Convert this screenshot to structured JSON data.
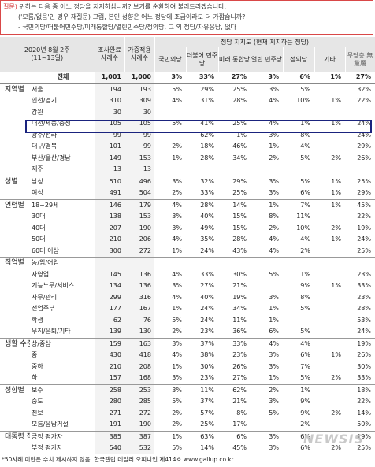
{
  "question": {
    "label": "질문)",
    "line1": "귀하는 다음 중 어느 정당을 지지하십니까? 보기를 순환하여 불러드리겠습니다.",
    "line2": "('모름/없음'인 경우 재질문) 그럼, 본인 성향은 어느 정당에 조금이라도 더 가깝습니까?",
    "line3": "- 국민의당/더불어민주당/미래통합당/열린민주당/정의당, 그 외 정당/자유응답, 없다"
  },
  "header": {
    "period": "2020년 8월 2주",
    "dates": "(11~13일)",
    "col_sample": "조사완료 사례수",
    "col_weighted": "가중적용 사례수",
    "party_group": "정당 지지도 (현재 지지하는 정당)",
    "parties": [
      "국민의당",
      "더불어 민주당",
      "미래 통합당",
      "열린 민주당",
      "정의당",
      "기타",
      "무당층 無黨層"
    ]
  },
  "rows": [
    {
      "group": "",
      "label": "전체",
      "n": "1,001",
      "w": "1,000",
      "v": [
        "3%",
        "33%",
        "27%",
        "3%",
        "6%",
        "1%",
        "27%"
      ]
    },
    {
      "group": "지역별",
      "label": "서울",
      "n": "194",
      "w": "193",
      "v": [
        "5%",
        "29%",
        "25%",
        "3%",
        "5%",
        "",
        "32%"
      ]
    },
    {
      "group": "",
      "label": "인천/경기",
      "n": "310",
      "w": "309",
      "v": [
        "4%",
        "31%",
        "28%",
        "4%",
        "10%",
        "1%",
        "22%"
      ]
    },
    {
      "group": "",
      "label": "강원",
      "n": "30",
      "w": "30",
      "v": [
        "",
        "",
        "",
        "",
        "",
        "",
        ""
      ]
    },
    {
      "group": "",
      "label": "대전/세종/충청",
      "n": "105",
      "w": "105",
      "v": [
        "5%",
        "41%",
        "25%",
        "4%",
        "1%",
        "1%",
        "24%"
      ]
    },
    {
      "group": "",
      "label": "광주/전라",
      "n": "99",
      "w": "99",
      "v": [
        "",
        "62%",
        "1%",
        "3%",
        "8%",
        "",
        "24%"
      ]
    },
    {
      "group": "",
      "label": "대구/경북",
      "n": "101",
      "w": "99",
      "v": [
        "2%",
        "18%",
        "46%",
        "1%",
        "4%",
        "",
        "29%"
      ]
    },
    {
      "group": "",
      "label": "부산/울산/경남",
      "n": "149",
      "w": "153",
      "v": [
        "1%",
        "28%",
        "34%",
        "2%",
        "5%",
        "2%",
        "26%"
      ]
    },
    {
      "group": "",
      "label": "제주",
      "n": "13",
      "w": "13",
      "v": [
        "",
        "",
        "",
        "",
        "",
        "",
        ""
      ]
    },
    {
      "group": "성별",
      "label": "남성",
      "n": "510",
      "w": "496",
      "v": [
        "3%",
        "32%",
        "29%",
        "3%",
        "5%",
        "1%",
        "25%"
      ]
    },
    {
      "group": "",
      "label": "여성",
      "n": "491",
      "n2": "",
      "w": "504",
      "v": [
        "2%",
        "33%",
        "25%",
        "3%",
        "6%",
        "1%",
        "29%"
      ]
    },
    {
      "group": "연령별",
      "label": "18~29세",
      "n": "146",
      "w": "179",
      "v": [
        "4%",
        "28%",
        "14%",
        "1%",
        "7%",
        "1%",
        "45%"
      ]
    },
    {
      "group": "",
      "label": "30대",
      "n": "138",
      "w": "153",
      "v": [
        "3%",
        "40%",
        "15%",
        "8%",
        "11%",
        "",
        "22%"
      ]
    },
    {
      "group": "",
      "label": "40대",
      "n": "207",
      "w": "190",
      "v": [
        "3%",
        "49%",
        "15%",
        "2%",
        "10%",
        "2%",
        "19%"
      ]
    },
    {
      "group": "",
      "label": "50대",
      "n": "210",
      "w": "206",
      "v": [
        "4%",
        "35%",
        "28%",
        "4%",
        "4%",
        "1%",
        "24%"
      ]
    },
    {
      "group": "",
      "label": "60대 이상",
      "n": "300",
      "w": "272",
      "v": [
        "1%",
        "24%",
        "43%",
        "4%",
        "2%",
        "",
        "25%"
      ]
    },
    {
      "group": "직업별",
      "label": "농/임/어업",
      "n": "",
      "w": "",
      "v": [
        "",
        "",
        "",
        "",
        "",
        "",
        ""
      ]
    },
    {
      "group": "",
      "label": "자영업",
      "n": "145",
      "w": "136",
      "v": [
        "4%",
        "33%",
        "30%",
        "5%",
        "1%",
        "",
        "23%"
      ]
    },
    {
      "group": "",
      "label": "기능노무/서비스",
      "n": "134",
      "w": "136",
      "v": [
        "3%",
        "27%",
        "21%",
        "",
        "9%",
        "1%",
        "33%"
      ]
    },
    {
      "group": "",
      "label": "사무/관리",
      "n": "299",
      "w": "316",
      "v": [
        "4%",
        "40%",
        "19%",
        "3%",
        "8%",
        "",
        "23%"
      ]
    },
    {
      "group": "",
      "label": "전업주부",
      "n": "177",
      "w": "167",
      "v": [
        "1%",
        "24%",
        "34%",
        "1%",
        "5%",
        "",
        "28%"
      ]
    },
    {
      "group": "",
      "label": "학생",
      "n": "62",
      "w": "76",
      "v": [
        "5%",
        "24%",
        "11%",
        "1%",
        "",
        "",
        "53%"
      ]
    },
    {
      "group": "",
      "label": "무직/은퇴/기타",
      "n": "139",
      "w": "130",
      "v": [
        "2%",
        "23%",
        "36%",
        "6%",
        "5%",
        "",
        "24%"
      ]
    },
    {
      "group": "생활 수준별",
      "label": "상/중상",
      "n": "159",
      "w": "163",
      "v": [
        "3%",
        "37%",
        "33%",
        "4%",
        "4%",
        "",
        "19%"
      ]
    },
    {
      "group": "",
      "label": "중",
      "n": "430",
      "w": "418",
      "v": [
        "4%",
        "38%",
        "23%",
        "3%",
        "6%",
        "1%",
        "26%"
      ]
    },
    {
      "group": "",
      "label": "중하",
      "n": "210",
      "w": "208",
      "v": [
        "1%",
        "30%",
        "26%",
        "3%",
        "7%",
        "",
        "30%"
      ]
    },
    {
      "group": "",
      "label": "하",
      "n": "157",
      "w": "168",
      "v": [
        "3%",
        "23%",
        "27%",
        "1%",
        "5%",
        "2%",
        "33%"
      ]
    },
    {
      "group": "성향별",
      "label": "보수",
      "n": "258",
      "w": "253",
      "v": [
        "3%",
        "11%",
        "62%",
        "2%",
        "1%",
        "",
        "18%"
      ]
    },
    {
      "group": "",
      "label": "중도",
      "n": "280",
      "w": "285",
      "v": [
        "5%",
        "37%",
        "21%",
        "3%",
        "9%",
        "",
        "22%"
      ]
    },
    {
      "group": "",
      "label": "진보",
      "n": "271",
      "w": "272",
      "v": [
        "2%",
        "57%",
        "8%",
        "5%",
        "9%",
        "2%",
        "14%"
      ]
    },
    {
      "group": "",
      "label": "모름/응답거절",
      "n": "191",
      "w": "190",
      "v": [
        "2%",
        "25%",
        "17%",
        "",
        "2%",
        "",
        "50%"
      ]
    },
    {
      "group": "대통령 직무",
      "label": "긍정 평가자",
      "n": "385",
      "w": "387",
      "v": [
        "1%",
        "63%",
        "6%",
        "3%",
        "6%",
        "",
        "19%"
      ]
    },
    {
      "group": "",
      "label": "부정 평가자",
      "n": "540",
      "w": "532",
      "v": [
        "5%",
        "14%",
        "45%",
        "3%",
        "6%",
        "2%",
        "25%"
      ]
    }
  ],
  "footnote": "*50사례 미만은 수치 제시하지 않음. 한국갤럽 데일리 오피니언 제414호 www.gallup.co.kr",
  "watermark": "NEWSIS"
}
